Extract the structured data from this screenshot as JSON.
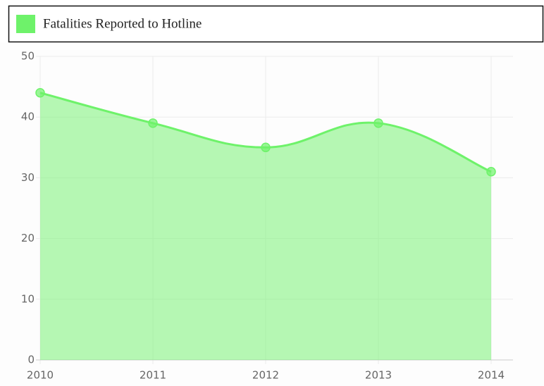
{
  "chart_data": {
    "type": "area",
    "categories": [
      "2010",
      "2011",
      "2012",
      "2013",
      "2014"
    ],
    "series": [
      {
        "name": "Fatalities Reported to Hotline",
        "color": "#6ef26a",
        "values": [
          44,
          39,
          35,
          39,
          31
        ]
      }
    ],
    "ylim": [
      0,
      50
    ],
    "yticks": [
      0,
      10,
      20,
      30,
      40,
      50
    ],
    "grid": true,
    "legend": "top"
  }
}
